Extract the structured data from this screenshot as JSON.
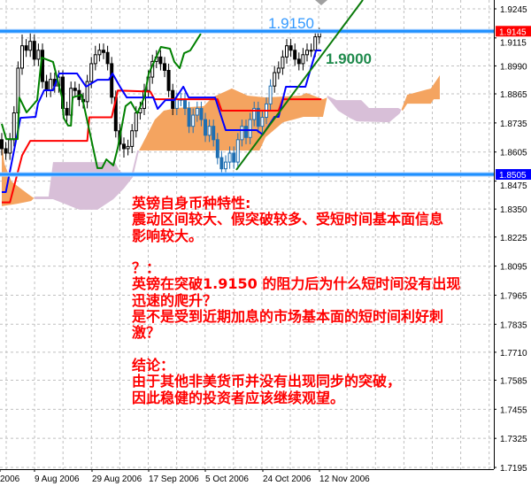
{
  "chart_data": {
    "type": "candlestick",
    "instrument_note": "",
    "y_axis": {
      "range": [
        1.7195,
        1.9245
      ],
      "side": "right",
      "ticks": [
        "1.9245",
        "1.9115",
        "1.8990",
        "1.8865",
        "1.8735",
        "1.8605",
        "1.8475",
        "1.8350",
        "1.8225",
        "1.8095",
        "1.7965",
        "1.7835",
        "1.7710",
        "1.7585",
        "1.7455",
        "1.7325",
        "1.7195"
      ]
    },
    "x_axis": {
      "labels": [
        "2006",
        "9 Aug 2006",
        "29 Aug 2006",
        "17 Sep 2006",
        "5 Oct 2006",
        "24 Oct 2006",
        "12 Nov 2006"
      ]
    },
    "grid": true,
    "candles_ohlc": [
      [
        1.866,
        1.869,
        1.859,
        1.862
      ],
      [
        1.862,
        1.865,
        1.857,
        1.86
      ],
      [
        1.86,
        1.869,
        1.857,
        1.866
      ],
      [
        1.866,
        1.881,
        1.863,
        1.878
      ],
      [
        1.878,
        1.901,
        1.875,
        1.898
      ],
      [
        1.898,
        1.913,
        1.895,
        1.908
      ],
      [
        1.908,
        1.911,
        1.903,
        1.906
      ],
      [
        1.906,
        1.914,
        1.903,
        1.91
      ],
      [
        1.91,
        1.913,
        1.899,
        1.902
      ],
      [
        1.902,
        1.909,
        1.899,
        1.906
      ],
      [
        1.906,
        1.909,
        1.889,
        1.892
      ],
      [
        1.892,
        1.895,
        1.885,
        1.888
      ],
      [
        1.888,
        1.896,
        1.885,
        1.893
      ],
      [
        1.893,
        1.896,
        1.887,
        1.89
      ],
      [
        1.89,
        1.897,
        1.887,
        1.894
      ],
      [
        1.894,
        1.897,
        1.877,
        1.88
      ],
      [
        1.88,
        1.883,
        1.874,
        1.877
      ],
      [
        1.877,
        1.892,
        1.874,
        1.889
      ],
      [
        1.889,
        1.892,
        1.885,
        1.888
      ],
      [
        1.888,
        1.891,
        1.881,
        1.884
      ],
      [
        1.884,
        1.887,
        1.88,
        1.883
      ],
      [
        1.883,
        1.895,
        1.88,
        1.892
      ],
      [
        1.892,
        1.903,
        1.889,
        1.9
      ],
      [
        1.9,
        1.908,
        1.897,
        1.904
      ],
      [
        1.904,
        1.909,
        1.901,
        1.906
      ],
      [
        1.906,
        1.909,
        1.902,
        1.905
      ],
      [
        1.905,
        1.908,
        1.897,
        1.9
      ],
      [
        1.9,
        1.903,
        1.882,
        1.885
      ],
      [
        1.885,
        1.888,
        1.867,
        1.87
      ],
      [
        1.87,
        1.873,
        1.861,
        1.864
      ],
      [
        1.864,
        1.867,
        1.858,
        1.862
      ],
      [
        1.862,
        1.866,
        1.859,
        1.863
      ],
      [
        1.863,
        1.873,
        1.86,
        1.87
      ],
      [
        1.87,
        1.881,
        1.867,
        1.878
      ],
      [
        1.878,
        1.883,
        1.875,
        1.88
      ],
      [
        1.88,
        1.891,
        1.877,
        1.888
      ],
      [
        1.888,
        1.897,
        1.885,
        1.894
      ],
      [
        1.894,
        1.904,
        1.891,
        1.901
      ],
      [
        1.901,
        1.906,
        1.898,
        1.903
      ],
      [
        1.903,
        1.906,
        1.897,
        1.9
      ],
      [
        1.9,
        1.903,
        1.894,
        1.897
      ],
      [
        1.897,
        1.9,
        1.885,
        1.888
      ],
      [
        1.888,
        1.891,
        1.877,
        1.88
      ],
      [
        1.88,
        1.887,
        1.877,
        1.884
      ],
      [
        1.884,
        1.887,
        1.881,
        1.884
      ],
      [
        1.884,
        1.887,
        1.877,
        1.88
      ],
      [
        1.88,
        1.883,
        1.869,
        1.872
      ],
      [
        1.872,
        1.88,
        1.869,
        1.877
      ],
      [
        1.877,
        1.883,
        1.874,
        1.88
      ],
      [
        1.88,
        1.883,
        1.872,
        1.875
      ],
      [
        1.875,
        1.878,
        1.865,
        1.868
      ],
      [
        1.868,
        1.875,
        1.865,
        1.872
      ],
      [
        1.872,
        1.875,
        1.863,
        1.866
      ],
      [
        1.866,
        1.869,
        1.855,
        1.858
      ],
      [
        1.858,
        1.861,
        1.851,
        1.853
      ],
      [
        1.853,
        1.859,
        1.851,
        1.856
      ],
      [
        1.856,
        1.863,
        1.853,
        1.86
      ],
      [
        1.86,
        1.863,
        1.853,
        1.856
      ],
      [
        1.856,
        1.869,
        1.853,
        1.866
      ],
      [
        1.866,
        1.875,
        1.863,
        1.872
      ],
      [
        1.872,
        1.875,
        1.864,
        1.867
      ],
      [
        1.867,
        1.878,
        1.864,
        1.875
      ],
      [
        1.875,
        1.883,
        1.872,
        1.88
      ],
      [
        1.88,
        1.883,
        1.869,
        1.872
      ],
      [
        1.872,
        1.879,
        1.869,
        1.876
      ],
      [
        1.876,
        1.885,
        1.873,
        1.882
      ],
      [
        1.882,
        1.893,
        1.879,
        1.89
      ],
      [
        1.89,
        1.899,
        1.887,
        1.896
      ],
      [
        1.896,
        1.901,
        1.893,
        1.898
      ],
      [
        1.898,
        1.906,
        1.895,
        1.903
      ],
      [
        1.903,
        1.911,
        1.9,
        1.908
      ],
      [
        1.908,
        1.911,
        1.903,
        1.906
      ],
      [
        1.906,
        1.909,
        1.899,
        1.902
      ],
      [
        1.902,
        1.905,
        1.897,
        1.9
      ],
      [
        1.9,
        1.907,
        1.897,
        1.904
      ],
      [
        1.904,
        1.909,
        1.901,
        1.906
      ],
      [
        1.906,
        1.909,
        1.903,
        1.906
      ],
      [
        1.906,
        1.915,
        1.903,
        1.912
      ],
      [
        1.912,
        1.916,
        1.909,
        1.914
      ]
    ],
    "candle_colors": {
      "bull_fill": "#ffffff",
      "bear_fill": "#000000",
      "outline": "#000000",
      "in_cloud": "#1f6fb2"
    },
    "ichimoku": {
      "tenkan": {
        "color": "#0000ff",
        "points": [
          [
            0,
            1.8426
          ],
          [
            1,
            1.8426
          ],
          [
            4.6,
            1.8758
          ],
          [
            8.3,
            1.8762
          ],
          [
            8.9,
            1.8822
          ],
          [
            10.4,
            1.8881
          ],
          [
            12.6,
            1.8881
          ],
          [
            14.1,
            1.8956
          ],
          [
            18.5,
            1.8956
          ],
          [
            20.7,
            1.8897
          ],
          [
            23.5,
            1.8928
          ],
          [
            26.3,
            1.8928
          ],
          [
            27.2,
            1.8956
          ],
          [
            29.3,
            1.8889
          ],
          [
            30.7,
            1.8849
          ],
          [
            37.2,
            1.8849
          ],
          [
            38.3,
            1.8798
          ],
          [
            40.2,
            1.8837
          ],
          [
            42.4,
            1.8837
          ],
          [
            44.6,
            1.8897
          ],
          [
            45.9,
            1.8849
          ],
          [
            52.4,
            1.8849
          ],
          [
            55,
            1.8703
          ],
          [
            62.6,
            1.8703
          ],
          [
            64.1,
            1.8683
          ],
          [
            67,
            1.8762
          ],
          [
            68,
            1.8762
          ],
          [
            69.8,
            1.8897
          ],
          [
            74.6,
            1.8897
          ],
          [
            77.2,
            1.9059
          ],
          [
            78.5,
            1.9059
          ]
        ]
      },
      "kijun": {
        "color": "#ff0000",
        "points": [
          [
            0,
            1.838
          ],
          [
            2,
            1.838
          ],
          [
            5,
            1.859
          ],
          [
            7,
            1.8655
          ],
          [
            21,
            1.8655
          ],
          [
            21.5,
            1.876
          ],
          [
            27,
            1.876
          ],
          [
            28.5,
            1.888
          ],
          [
            36.5,
            1.8875
          ],
          [
            37.5,
            1.8841
          ],
          [
            53,
            1.8841
          ],
          [
            54,
            1.879
          ],
          [
            68,
            1.879
          ],
          [
            69,
            1.8841
          ],
          [
            78.5,
            1.8841
          ]
        ]
      },
      "chikou": {
        "color": "#008000",
        "points": [
          [
            0,
            1.8731
          ],
          [
            1.1,
            1.8663
          ],
          [
            3.9,
            1.8663
          ],
          [
            4.3,
            1.8849
          ],
          [
            6.1,
            1.8782
          ],
          [
            8.7,
            1.8837
          ],
          [
            9.8,
            1.9027
          ],
          [
            12.6,
            1.9008
          ],
          [
            13.7,
            1.8928
          ],
          [
            14.8,
            1.8849
          ],
          [
            15.2,
            1.8758
          ],
          [
            16.3,
            1.8723
          ],
          [
            17,
            1.8723
          ],
          [
            17.4,
            1.8849
          ],
          [
            19.6,
            1.8861
          ],
          [
            21.3,
            1.8719
          ],
          [
            23.5,
            1.8533
          ],
          [
            24.6,
            1.8533
          ],
          [
            25.7,
            1.8572
          ],
          [
            27.4,
            1.8545
          ],
          [
            28.5,
            1.8624
          ],
          [
            30.4,
            1.881
          ],
          [
            31.7,
            1.8829
          ],
          [
            33.3,
            1.8778
          ],
          [
            35,
            1.8849
          ],
          [
            36.1,
            1.8956
          ],
          [
            39.1,
            1.9075
          ],
          [
            41.3,
            1.9067
          ],
          [
            42.4,
            1.9008
          ],
          [
            43.7,
            1.898
          ],
          [
            44.8,
            1.9047
          ],
          [
            46.3,
            1.9059
          ],
          [
            48.9,
            1.9134
          ]
        ]
      },
      "senkou_a": {
        "points": [
          [
            0,
            1.8651
          ],
          [
            0.65,
            1.8552
          ],
          [
            2.4,
            1.8473
          ],
          [
            6.7,
            1.8414
          ],
          [
            8.3,
            1.8394
          ],
          [
            12.6,
            1.8394
          ],
          [
            19.1,
            1.8347
          ],
          [
            23.5,
            1.8347
          ],
          [
            27.4,
            1.8394
          ],
          [
            30,
            1.8442
          ],
          [
            32.2,
            1.8493
          ],
          [
            33.7,
            1.8612
          ],
          [
            35.4,
            1.8671
          ],
          [
            37.6,
            1.875
          ],
          [
            39.8,
            1.879
          ],
          [
            43,
            1.8802
          ],
          [
            49.6,
            1.881
          ],
          [
            51.7,
            1.8849
          ],
          [
            56.5,
            1.8889
          ],
          [
            60.4,
            1.8857
          ],
          [
            64.8,
            1.8849
          ],
          [
            73.5,
            1.8857
          ],
          [
            74.8,
            1.8869
          ],
          [
            78.9,
            1.8841
          ],
          [
            80,
            1.8849
          ],
          [
            82.6,
            1.879
          ],
          [
            85.4,
            1.8758
          ],
          [
            87.2,
            1.8742
          ],
          [
            95.2,
            1.8738
          ],
          [
            97.8,
            1.8778
          ],
          [
            99.6,
            1.8861
          ],
          [
            105.4,
            1.8889
          ],
          [
            107.6,
            1.8948
          ]
        ]
      },
      "senkou_b": {
        "points": [
          [
            0,
            1.8363
          ],
          [
            3.9,
            1.8374
          ],
          [
            7.2,
            1.8386
          ],
          [
            8.3,
            1.8406
          ],
          [
            11.5,
            1.8406
          ],
          [
            12.6,
            1.856
          ],
          [
            27.8,
            1.856
          ],
          [
            28.9,
            1.8521
          ],
          [
            31.7,
            1.8493
          ],
          [
            33.3,
            1.8612
          ],
          [
            63.3,
            1.8612
          ],
          [
            64.8,
            1.8671
          ],
          [
            69.1,
            1.8738
          ],
          [
            74.1,
            1.8762
          ],
          [
            78.9,
            1.8762
          ],
          [
            80,
            1.8857
          ],
          [
            82.2,
            1.8837
          ],
          [
            88.3,
            1.8837
          ],
          [
            90.2,
            1.8802
          ],
          [
            97.4,
            1.8802
          ],
          [
            98.5,
            1.879
          ],
          [
            99.6,
            1.8821
          ],
          [
            105.4,
            1.8821
          ],
          [
            106.1,
            1.8841
          ],
          [
            107.6,
            1.8841
          ]
        ]
      },
      "cloud_up_color": "#f4a460",
      "cloud_down_color": "#d8bfd8"
    },
    "levels": [
      {
        "price": 1.9145,
        "label": "1.9145",
        "line_color": "#1e90ff",
        "label_bg": "#ff0000"
      },
      {
        "price": 1.8505,
        "label": "1.8505",
        "line_color": "#1e90ff",
        "label_bg": "#0000ff"
      }
    ],
    "trendline": {
      "color": "#0a7a0a",
      "points": [
        [
          57.6,
          1.8525
        ],
        [
          88.7,
          1.9285
        ]
      ]
    },
    "annotations": [
      {
        "text": "1.9150",
        "color": "#3399ff"
      },
      {
        "text": "1.9000",
        "color": "#1f8a4c"
      }
    ]
  },
  "annotation": {
    "color": "#ff0000",
    "lines": [
      "英镑自身币种特性:",
      "震动区间较大、假突破较多、受短时间基本面信息",
      "影响较大。",
      "？：",
      "英镑在突破1.9150 的阻力后为什么短时间没有出现",
      "迅速的爬升？",
      "是不是受到近期加息的市场基本面的短时间利好刺",
      "激？",
      "结论：",
      "由于其他非美货币并没有出现同步的突破，",
      "因此稳健的投资者应该继续观望。"
    ]
  }
}
